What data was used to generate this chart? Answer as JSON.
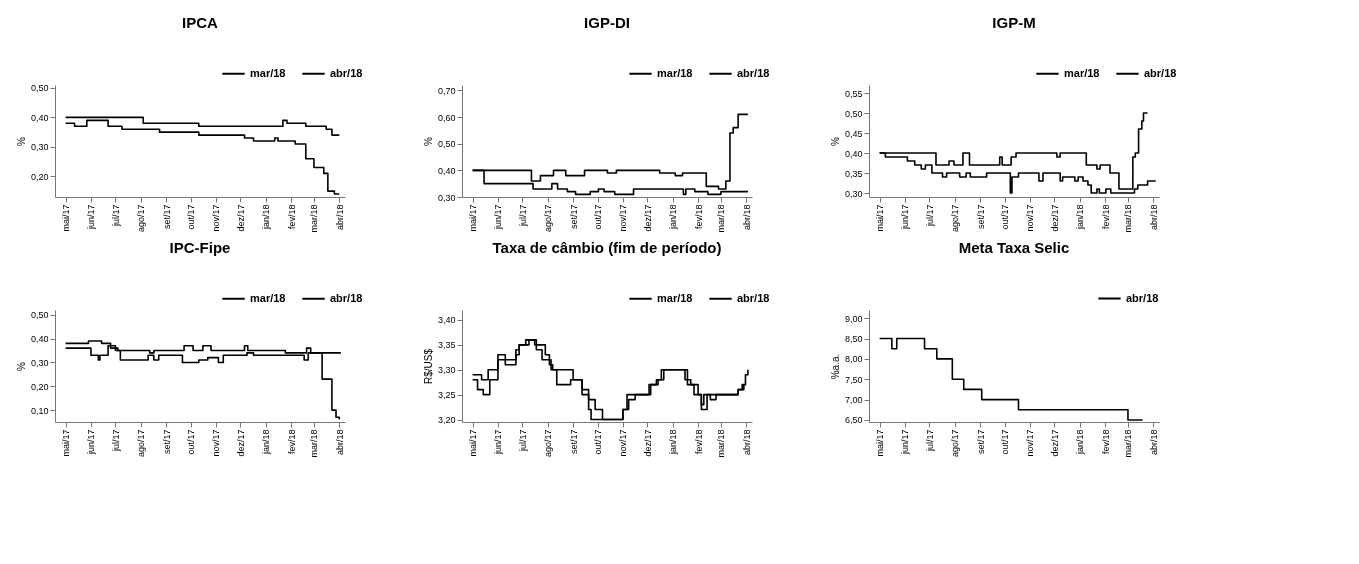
{
  "chart_data": [
    {
      "type": "step",
      "title": "IPCA",
      "ylabel": "%",
      "legend": "top right",
      "xlim": [
        "2017-04-18",
        "2018-04-08"
      ],
      "xticks": [
        {
          "value": "2017-05-01",
          "label": "mai/17"
        },
        {
          "value": "2017-06-01",
          "label": "jun/17"
        },
        {
          "value": "2017-07-01",
          "label": "jul/17"
        },
        {
          "value": "2017-08-01",
          "label": "ago/17"
        },
        {
          "value": "2017-09-01",
          "label": "set/17"
        },
        {
          "value": "2017-10-01",
          "label": "out/17"
        },
        {
          "value": "2017-11-01",
          "label": "nov/17"
        },
        {
          "value": "2017-12-01",
          "label": "dez/17"
        },
        {
          "value": "2018-01-01",
          "label": "jan/18"
        },
        {
          "value": "2018-02-01",
          "label": "fev/18"
        },
        {
          "value": "2018-03-01",
          "label": "mar/18"
        },
        {
          "value": "2018-04-01",
          "label": "abr/18"
        }
      ],
      "ylim": [
        0.13,
        0.51
      ],
      "yticks": [
        {
          "value": 0.2,
          "label": "0,20"
        },
        {
          "value": 0.3,
          "label": "0,30"
        },
        {
          "value": 0.4,
          "label": "0,40"
        },
        {
          "value": 0.5,
          "label": "0,50"
        }
      ],
      "series": [
        {
          "name": "mar/18",
          "color": "#000000",
          "x": [
            "2017-05-01",
            "2017-08-04",
            "2017-10-11",
            "2018-01-22",
            "2018-01-27",
            "2018-02-19",
            "2018-03-16",
            "2018-03-23",
            "2018-04-01"
          ],
          "values": [
            0.4,
            0.38,
            0.37,
            0.39,
            0.38,
            0.37,
            0.36,
            0.34,
            0.34
          ]
        },
        {
          "name": "abr/18",
          "color": "#000000",
          "x": [
            "2017-05-01",
            "2017-05-12",
            "2017-05-27",
            "2017-06-22",
            "2017-07-09",
            "2017-08-24",
            "2017-10-11",
            "2017-12-06",
            "2017-12-17",
            "2018-01-12",
            "2018-01-16",
            "2018-02-06",
            "2018-02-19",
            "2018-03-01",
            "2018-03-13",
            "2018-03-18",
            "2018-03-26",
            "2018-04-01"
          ],
          "values": [
            0.38,
            0.37,
            0.39,
            0.37,
            0.36,
            0.35,
            0.34,
            0.33,
            0.32,
            0.33,
            0.32,
            0.31,
            0.26,
            0.23,
            0.21,
            0.15,
            0.14,
            0.14
          ]
        }
      ]
    },
    {
      "type": "step",
      "title": "IGP-DI",
      "ylabel": "%",
      "legend": "top right",
      "xlim": [
        "2017-04-18",
        "2018-04-08"
      ],
      "xticks": [
        {
          "value": "2017-05-01",
          "label": "mai/17"
        },
        {
          "value": "2017-06-01",
          "label": "jun/17"
        },
        {
          "value": "2017-07-01",
          "label": "jul/17"
        },
        {
          "value": "2017-08-01",
          "label": "ago/17"
        },
        {
          "value": "2017-09-01",
          "label": "set/17"
        },
        {
          "value": "2017-10-01",
          "label": "out/17"
        },
        {
          "value": "2017-11-01",
          "label": "nov/17"
        },
        {
          "value": "2017-12-01",
          "label": "dez/17"
        },
        {
          "value": "2018-01-01",
          "label": "jan/18"
        },
        {
          "value": "2018-02-01",
          "label": "fev/18"
        },
        {
          "value": "2018-03-01",
          "label": "mar/18"
        },
        {
          "value": "2018-04-01",
          "label": "abr/18"
        }
      ],
      "ylim": [
        0.3,
        0.72
      ],
      "yticks": [
        {
          "value": 0.3,
          "label": "0,30"
        },
        {
          "value": 0.4,
          "label": "0,40"
        },
        {
          "value": 0.5,
          "label": "0,50"
        },
        {
          "value": 0.6,
          "label": "0,60"
        },
        {
          "value": 0.7,
          "label": "0,70"
        }
      ],
      "series": [
        {
          "name": "mar/18",
          "color": "#000000",
          "x": [
            "2017-05-01",
            "2017-07-12",
            "2017-07-23",
            "2017-08-08",
            "2017-08-23",
            "2017-09-15",
            "2017-10-13",
            "2017-10-24",
            "2017-12-16",
            "2018-01-04",
            "2018-01-13",
            "2018-02-11",
            "2018-02-26",
            "2018-03-07",
            "2018-03-12",
            "2018-03-16",
            "2018-03-22",
            "2018-04-03"
          ],
          "values": [
            0.4,
            0.36,
            0.38,
            0.4,
            0.38,
            0.4,
            0.39,
            0.4,
            0.39,
            0.38,
            0.39,
            0.34,
            0.33,
            0.36,
            0.54,
            0.56,
            0.61,
            0.61
          ]
        },
        {
          "name": "abr/18",
          "color": "#000000",
          "x": [
            "2017-05-01",
            "2017-05-15",
            "2017-07-14",
            "2017-08-06",
            "2017-08-13",
            "2017-08-25",
            "2017-09-04",
            "2017-09-22",
            "2017-10-02",
            "2017-10-09",
            "2017-10-22",
            "2017-11-14",
            "2018-01-14",
            "2018-01-17",
            "2018-01-28",
            "2018-02-13",
            "2018-03-01",
            "2018-04-03"
          ],
          "values": [
            0.4,
            0.35,
            0.33,
            0.35,
            0.33,
            0.32,
            0.31,
            0.32,
            0.33,
            0.32,
            0.31,
            0.33,
            0.31,
            0.33,
            0.32,
            0.31,
            0.32,
            0.32
          ]
        }
      ]
    },
    {
      "type": "step",
      "title": "IGP-M",
      "ylabel": "%",
      "legend": "top right",
      "xlim": [
        "2017-04-18",
        "2018-04-08"
      ],
      "xticks": [
        {
          "value": "2017-05-01",
          "label": "mai/17"
        },
        {
          "value": "2017-06-01",
          "label": "jun/17"
        },
        {
          "value": "2017-07-01",
          "label": "jul/17"
        },
        {
          "value": "2017-08-01",
          "label": "ago/17"
        },
        {
          "value": "2017-09-01",
          "label": "set/17"
        },
        {
          "value": "2017-10-01",
          "label": "out/17"
        },
        {
          "value": "2017-11-01",
          "label": "nov/17"
        },
        {
          "value": "2017-12-01",
          "label": "dez/17"
        },
        {
          "value": "2018-01-01",
          "label": "jan/18"
        },
        {
          "value": "2018-02-01",
          "label": "fev/18"
        },
        {
          "value": "2018-03-01",
          "label": "mar/18"
        },
        {
          "value": "2018-04-01",
          "label": "abr/18"
        }
      ],
      "ylim": [
        0.29,
        0.57
      ],
      "yticks": [
        {
          "value": 0.3,
          "label": "0,30"
        },
        {
          "value": 0.35,
          "label": "0,35"
        },
        {
          "value": 0.4,
          "label": "0,40"
        },
        {
          "value": 0.45,
          "label": "0,45"
        },
        {
          "value": 0.5,
          "label": "0,50"
        },
        {
          "value": 0.55,
          "label": "0,55"
        }
      ],
      "series": [
        {
          "name": "mar/18",
          "color": "#000000",
          "x": [
            "2017-05-01",
            "2017-07-09",
            "2017-07-25",
            "2017-07-31",
            "2017-08-11",
            "2017-08-19",
            "2017-09-25",
            "2017-09-28",
            "2017-10-09",
            "2017-10-15",
            "2017-12-04",
            "2017-12-08",
            "2018-01-09",
            "2018-01-22",
            "2018-01-26",
            "2018-02-07",
            "2018-02-18",
            "2018-03-07",
            "2018-03-10",
            "2018-03-14",
            "2018-03-18",
            "2018-03-20",
            "2018-03-25"
          ],
          "values": [
            0.4,
            0.37,
            0.38,
            0.37,
            0.4,
            0.37,
            0.39,
            0.37,
            0.39,
            0.4,
            0.39,
            0.4,
            0.37,
            0.36,
            0.37,
            0.35,
            0.31,
            0.39,
            0.4,
            0.46,
            0.48,
            0.5,
            0.5
          ]
        },
        {
          "name": "abr/18",
          "color": "#000000",
          "x": [
            "2017-05-01",
            "2017-05-08",
            "2017-06-04",
            "2017-06-13",
            "2017-06-21",
            "2017-06-26",
            "2017-07-04",
            "2017-07-17",
            "2017-07-22",
            "2017-08-07",
            "2017-08-15",
            "2017-08-20",
            "2017-09-09",
            "2017-10-08",
            "2017-10-10",
            "2017-10-18",
            "2017-11-12",
            "2017-11-17",
            "2017-12-08",
            "2017-12-11",
            "2017-12-26",
            "2017-12-30",
            "2018-01-05",
            "2018-01-11",
            "2018-01-15",
            "2018-01-22",
            "2018-01-25",
            "2018-02-02",
            "2018-02-08",
            "2018-03-09",
            "2018-03-13",
            "2018-03-25",
            "2018-04-04"
          ],
          "values": [
            0.4,
            0.39,
            0.38,
            0.37,
            0.36,
            0.37,
            0.35,
            0.34,
            0.35,
            0.34,
            0.35,
            0.34,
            0.35,
            0.3,
            0.34,
            0.35,
            0.33,
            0.35,
            0.33,
            0.34,
            0.33,
            0.34,
            0.33,
            0.32,
            0.3,
            0.31,
            0.3,
            0.31,
            0.3,
            0.31,
            0.32,
            0.33,
            0.33
          ]
        }
      ]
    },
    {
      "type": "step",
      "title": "IPC-Fipe",
      "ylabel": "%",
      "legend": "top right",
      "xlim": [
        "2017-04-18",
        "2018-04-08"
      ],
      "xticks": [
        {
          "value": "2017-05-01",
          "label": "mai/17"
        },
        {
          "value": "2017-06-01",
          "label": "jun/17"
        },
        {
          "value": "2017-07-01",
          "label": "jul/17"
        },
        {
          "value": "2017-08-01",
          "label": "ago/17"
        },
        {
          "value": "2017-09-01",
          "label": "set/17"
        },
        {
          "value": "2017-10-01",
          "label": "out/17"
        },
        {
          "value": "2017-11-01",
          "label": "nov/17"
        },
        {
          "value": "2017-12-01",
          "label": "dez/17"
        },
        {
          "value": "2018-01-01",
          "label": "jan/18"
        },
        {
          "value": "2018-02-01",
          "label": "fev/18"
        },
        {
          "value": "2018-03-01",
          "label": "mar/18"
        },
        {
          "value": "2018-04-01",
          "label": "abr/18"
        }
      ],
      "ylim": [
        0.05,
        0.52
      ],
      "yticks": [
        {
          "value": 0.1,
          "label": "0,10"
        },
        {
          "value": 0.2,
          "label": "0,20"
        },
        {
          "value": 0.3,
          "label": "0,30"
        },
        {
          "value": 0.4,
          "label": "0,40"
        },
        {
          "value": 0.5,
          "label": "0,50"
        }
      ],
      "series": [
        {
          "name": "mar/18",
          "color": "#000000",
          "x": [
            "2017-05-01",
            "2017-05-29",
            "2017-06-14",
            "2017-06-25",
            "2017-07-04",
            "2017-08-12",
            "2017-08-17",
            "2017-09-23",
            "2017-10-04",
            "2017-10-16",
            "2017-10-26",
            "2017-12-06",
            "2017-12-10",
            "2018-01-25",
            "2018-02-20",
            "2018-02-25",
            "2018-04-03"
          ],
          "values": [
            0.38,
            0.39,
            0.38,
            0.36,
            0.35,
            0.34,
            0.35,
            0.37,
            0.35,
            0.37,
            0.35,
            0.37,
            0.35,
            0.34,
            0.36,
            0.34,
            0.34
          ]
        },
        {
          "name": "abr/18",
          "color": "#000000",
          "x": [
            "2017-05-01",
            "2017-06-01",
            "2017-06-10",
            "2017-06-12",
            "2017-06-22",
            "2017-07-01",
            "2017-07-07",
            "2017-08-10",
            "2017-08-17",
            "2017-08-23",
            "2017-09-21",
            "2017-10-11",
            "2017-10-22",
            "2017-11-04",
            "2017-11-10",
            "2017-12-09",
            "2017-12-17",
            "2018-02-17",
            "2018-02-22",
            "2018-03-11",
            "2018-03-23",
            "2018-03-28",
            "2018-04-01"
          ],
          "values": [
            0.36,
            0.33,
            0.31,
            0.33,
            0.37,
            0.35,
            0.31,
            0.33,
            0.31,
            0.33,
            0.3,
            0.31,
            0.32,
            0.3,
            0.33,
            0.34,
            0.33,
            0.31,
            0.34,
            0.23,
            0.1,
            0.07,
            0.06
          ]
        }
      ]
    },
    {
      "type": "step",
      "title": "Taxa de câmbio (fim de período)",
      "ylabel": "R$/US$",
      "legend": "top right",
      "xlim": [
        "2017-04-18",
        "2018-04-08"
      ],
      "xticks": [
        {
          "value": "2017-05-01",
          "label": "mai/17"
        },
        {
          "value": "2017-06-01",
          "label": "jun/17"
        },
        {
          "value": "2017-07-01",
          "label": "jul/17"
        },
        {
          "value": "2017-08-01",
          "label": "ago/17"
        },
        {
          "value": "2017-09-01",
          "label": "set/17"
        },
        {
          "value": "2017-10-01",
          "label": "out/17"
        },
        {
          "value": "2017-11-01",
          "label": "nov/17"
        },
        {
          "value": "2017-12-01",
          "label": "dez/17"
        },
        {
          "value": "2018-01-01",
          "label": "jan/18"
        },
        {
          "value": "2018-02-01",
          "label": "fev/18"
        },
        {
          "value": "2018-03-01",
          "label": "mar/18"
        },
        {
          "value": "2018-04-01",
          "label": "abr/18"
        }
      ],
      "ylim": [
        3.195,
        3.42
      ],
      "yticks": [
        {
          "value": 3.2,
          "label": "3,20"
        },
        {
          "value": 3.25,
          "label": "3,25"
        },
        {
          "value": 3.3,
          "label": "3,30"
        },
        {
          "value": 3.35,
          "label": "3,35"
        },
        {
          "value": 3.4,
          "label": "3,40"
        }
      ],
      "series": [
        {
          "name": "mar/18",
          "color": "#000000",
          "x": [
            "2017-05-01",
            "2017-05-12",
            "2017-05-20",
            "2017-06-01",
            "2017-06-23",
            "2017-06-27",
            "2017-07-09",
            "2017-07-16",
            "2017-07-29",
            "2017-08-03",
            "2017-08-07",
            "2017-09-01",
            "2017-09-12",
            "2017-09-20",
            "2017-09-28",
            "2017-10-07",
            "2017-11-01",
            "2017-11-08",
            "2017-11-16",
            "2017-12-03",
            "2017-12-12",
            "2017-12-18",
            "2018-01-16",
            "2018-01-23",
            "2018-02-01",
            "2018-02-05",
            "2018-02-08",
            "2018-03-22",
            "2018-03-27",
            "2018-03-31",
            "2018-04-03"
          ],
          "values": [
            3.29,
            3.28,
            3.3,
            3.32,
            3.34,
            3.35,
            3.36,
            3.35,
            3.33,
            3.31,
            3.3,
            3.28,
            3.26,
            3.24,
            3.22,
            3.2,
            3.22,
            3.24,
            3.25,
            3.27,
            3.28,
            3.3,
            3.28,
            3.27,
            3.25,
            3.23,
            3.25,
            3.26,
            3.27,
            3.29,
            3.3
          ]
        },
        {
          "name": "abr/18",
          "color": "#000000",
          "x": [
            "2017-05-01",
            "2017-05-07",
            "2017-05-14",
            "2017-05-22",
            "2017-06-01",
            "2017-06-10",
            "2017-06-23",
            "2017-06-27",
            "2017-07-05",
            "2017-07-18",
            "2017-07-25",
            "2017-08-05",
            "2017-08-12",
            "2017-08-29",
            "2017-09-12",
            "2017-09-20",
            "2017-09-23",
            "2017-11-01",
            "2017-11-06",
            "2017-12-05",
            "2017-12-14",
            "2017-12-21",
            "2018-01-19",
            "2018-01-27",
            "2018-02-05",
            "2018-02-12",
            "2018-02-16",
            "2018-02-23",
            "2018-03-22",
            "2018-03-29"
          ],
          "values": [
            3.28,
            3.26,
            3.25,
            3.28,
            3.33,
            3.31,
            3.33,
            3.35,
            3.36,
            3.34,
            3.32,
            3.3,
            3.27,
            3.28,
            3.25,
            3.22,
            3.2,
            3.22,
            3.25,
            3.27,
            3.28,
            3.3,
            3.27,
            3.25,
            3.22,
            3.25,
            3.24,
            3.25,
            3.26,
            3.27
          ]
        }
      ]
    },
    {
      "type": "step",
      "title": "Meta Taxa Selic",
      "ylabel": "%a.a.",
      "legend": "top right",
      "xlim": [
        "2017-04-18",
        "2018-04-08"
      ],
      "xticks": [
        {
          "value": "2017-05-01",
          "label": "mai/17"
        },
        {
          "value": "2017-06-01",
          "label": "jun/17"
        },
        {
          "value": "2017-07-01",
          "label": "jul/17"
        },
        {
          "value": "2017-08-01",
          "label": "ago/17"
        },
        {
          "value": "2017-09-01",
          "label": "set/17"
        },
        {
          "value": "2017-10-01",
          "label": "out/17"
        },
        {
          "value": "2017-11-01",
          "label": "nov/17"
        },
        {
          "value": "2017-12-01",
          "label": "dez/17"
        },
        {
          "value": "2018-01-01",
          "label": "jan/18"
        },
        {
          "value": "2018-02-01",
          "label": "fev/18"
        },
        {
          "value": "2018-03-01",
          "label": "mar/18"
        },
        {
          "value": "2018-04-01",
          "label": "abr/18"
        }
      ],
      "ylim": [
        6.45,
        9.2
      ],
      "yticks": [
        {
          "value": 6.5,
          "label": "6,50"
        },
        {
          "value": 7,
          "label": "7,00"
        },
        {
          "value": 7.5,
          "label": "7,50"
        },
        {
          "value": 8,
          "label": "8,00"
        },
        {
          "value": 8.5,
          "label": "8,50"
        },
        {
          "value": 9,
          "label": "9,00"
        }
      ],
      "series": [
        {
          "name": "abr/18",
          "color": "#000000",
          "x": [
            "2017-05-01",
            "2017-05-16",
            "2017-05-22",
            "2017-06-25",
            "2017-07-10",
            "2017-07-29",
            "2017-08-12",
            "2017-09-03",
            "2017-10-18",
            "2018-03-01",
            "2018-03-19"
          ],
          "values": [
            8.5,
            8.25,
            8.5,
            8.25,
            8.0,
            7.5,
            7.25,
            7.0,
            6.75,
            6.5,
            6.5
          ]
        }
      ]
    }
  ]
}
